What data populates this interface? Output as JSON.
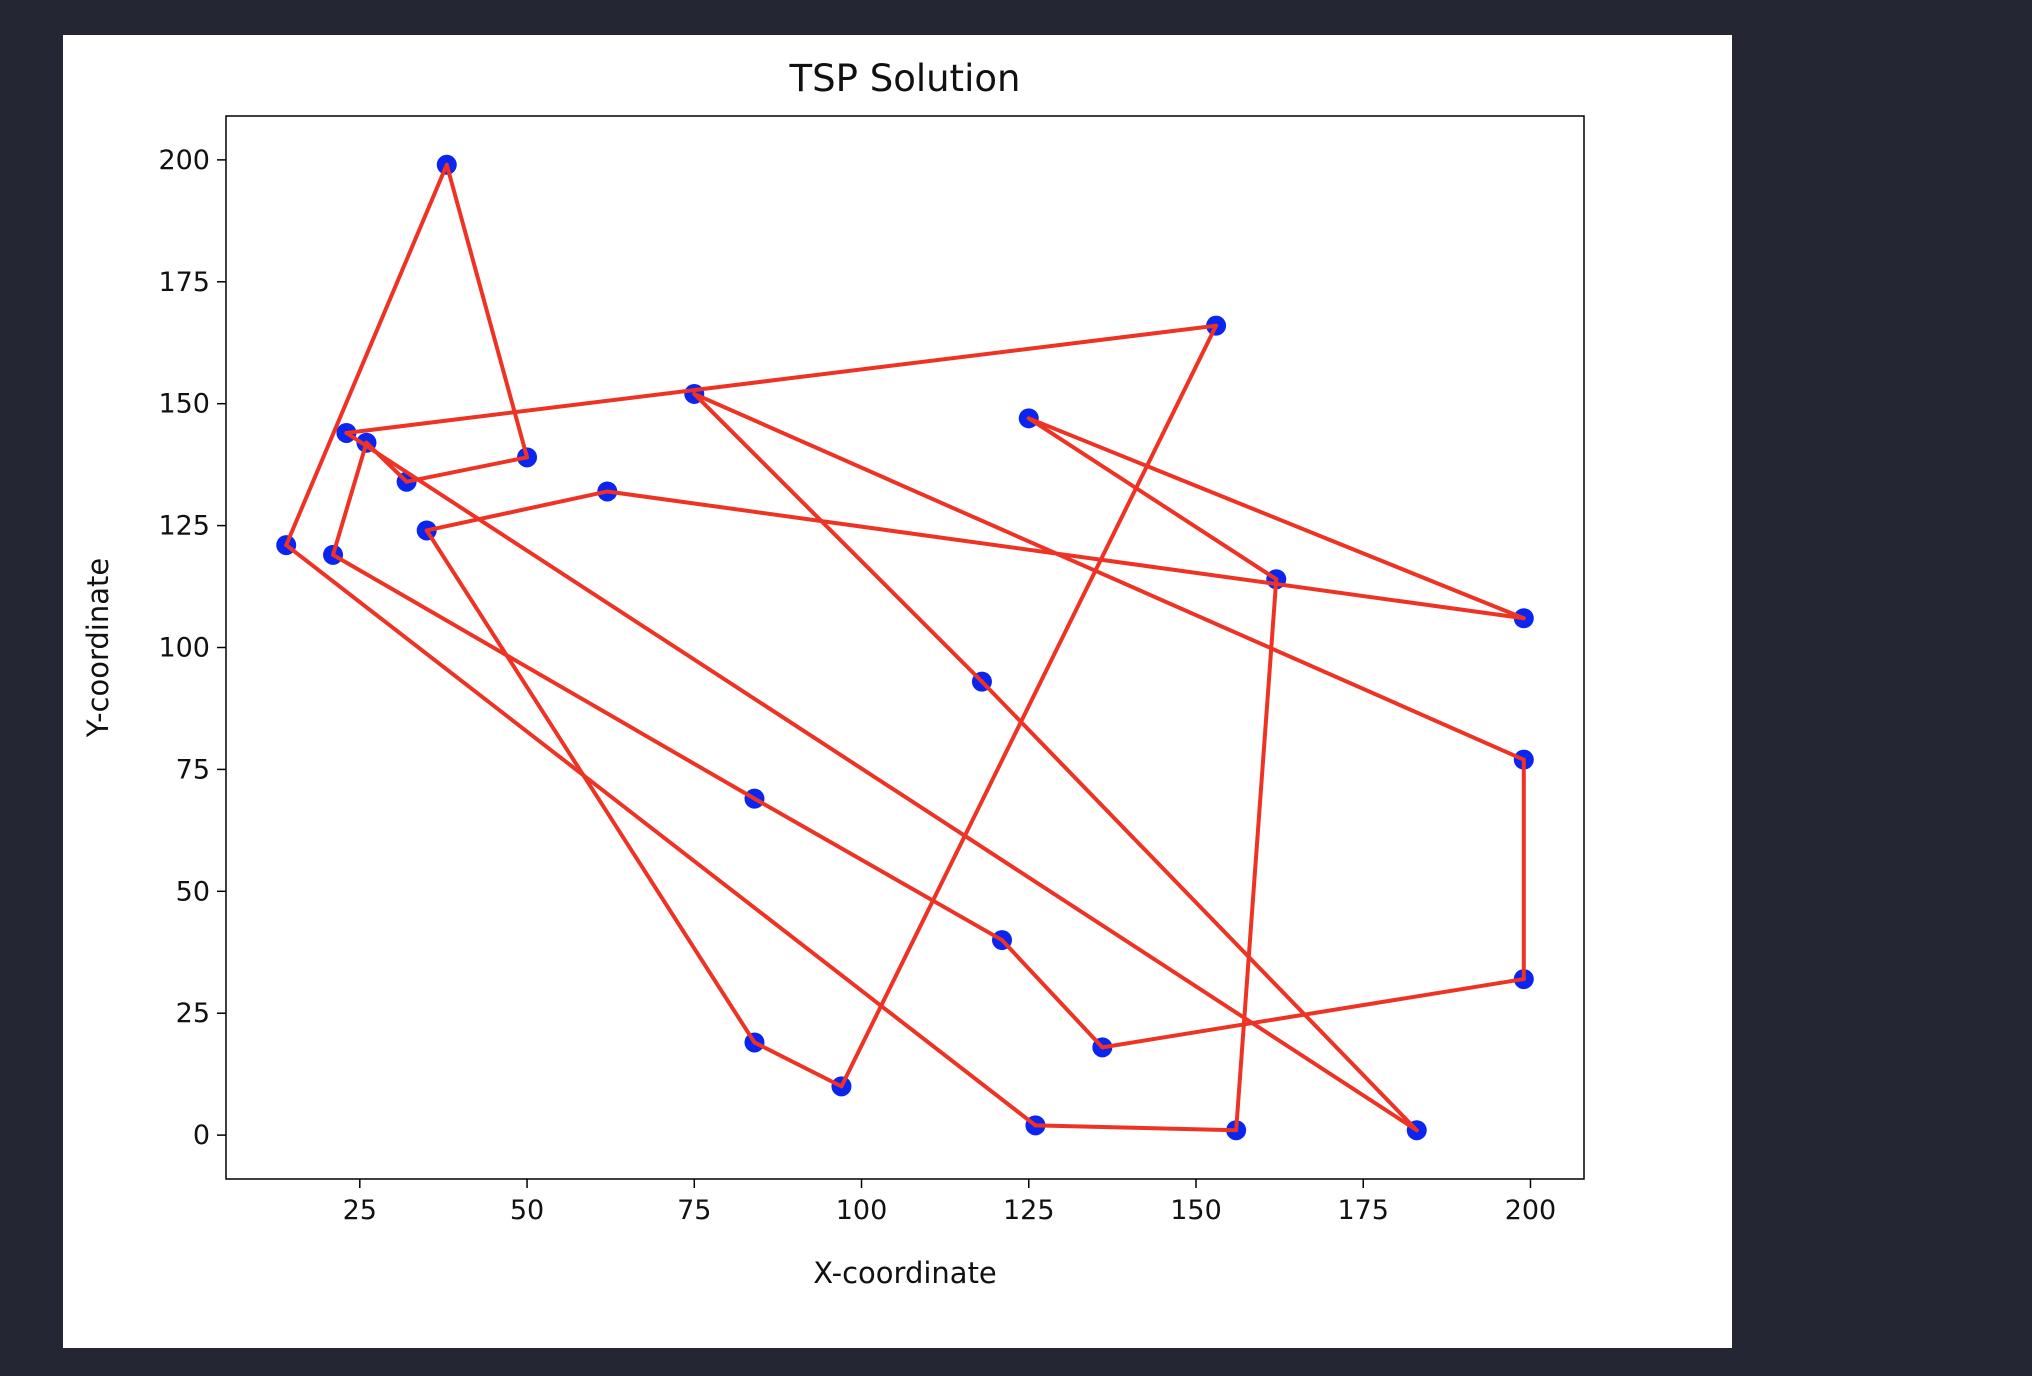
{
  "chart_data": {
    "type": "scatter",
    "title": "TSP Solution",
    "xlabel": "X-coordinate",
    "ylabel": "Y-coordinate",
    "xlim": [
      5,
      208
    ],
    "ylim": [
      -9,
      209
    ],
    "xticks": [
      25,
      50,
      75,
      100,
      125,
      150,
      175,
      200
    ],
    "yticks": [
      0,
      25,
      50,
      75,
      100,
      125,
      150,
      175,
      200
    ],
    "grid": false,
    "point_color": "#0a25f0",
    "line_color": "#ee3325",
    "points": [
      {
        "x": 38,
        "y": 199
      },
      {
        "x": 50,
        "y": 139
      },
      {
        "x": 32,
        "y": 134
      },
      {
        "x": 26,
        "y": 142
      },
      {
        "x": 21,
        "y": 119
      },
      {
        "x": 84,
        "y": 69
      },
      {
        "x": 121,
        "y": 40
      },
      {
        "x": 136,
        "y": 18
      },
      {
        "x": 199,
        "y": 32
      },
      {
        "x": 199,
        "y": 77
      },
      {
        "x": 75,
        "y": 152
      },
      {
        "x": 118,
        "y": 93
      },
      {
        "x": 183,
        "y": 1
      },
      {
        "x": 23,
        "y": 144
      },
      {
        "x": 153,
        "y": 166
      },
      {
        "x": 97,
        "y": 10
      },
      {
        "x": 84,
        "y": 19
      },
      {
        "x": 35,
        "y": 124
      },
      {
        "x": 62,
        "y": 132
      },
      {
        "x": 199,
        "y": 106
      },
      {
        "x": 125,
        "y": 147
      },
      {
        "x": 162,
        "y": 114
      },
      {
        "x": 156,
        "y": 1
      },
      {
        "x": 126,
        "y": 2
      },
      {
        "x": 14,
        "y": 121
      }
    ],
    "route_closed": true
  }
}
